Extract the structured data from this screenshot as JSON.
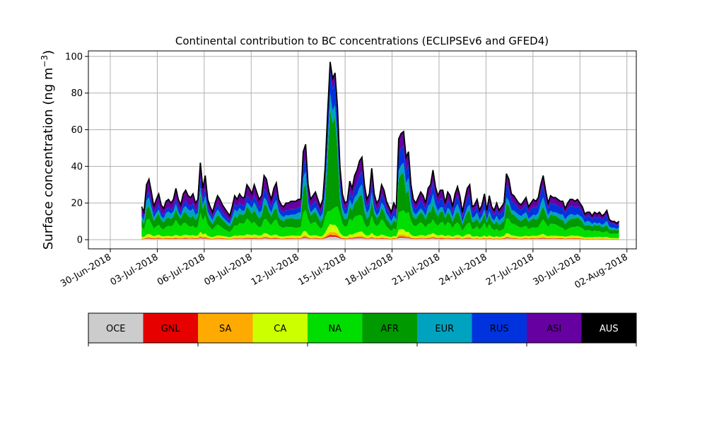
{
  "chart_data": {
    "type": "area",
    "stacked": true,
    "title": "Continental contribution to BC concentrations (ECLIPSEv6 and GFED4)",
    "ylabel": "Surface concentration (ng m",
    "ylabel_sup": "−3",
    "ylabel_close": ")",
    "xlabel": "",
    "ylim": [
      -5,
      103
    ],
    "grid": true,
    "x_start": "2018-07-02",
    "x_end": "2018-08-01",
    "x_tick_labels": [
      "30-Jun-2018",
      "03-Jul-2018",
      "06-Jul-2018",
      "09-Jul-2018",
      "12-Jul-2018",
      "15-Jul-2018",
      "18-Jul-2018",
      "21-Jul-2018",
      "24-Jul-2018",
      "27-Jul-2018",
      "30-Jul-2018",
      "02-Aug-2018"
    ],
    "y_tick_labels": [
      "0",
      "20",
      "40",
      "60",
      "80",
      "100"
    ],
    "y_ticks": [
      0,
      20,
      40,
      60,
      80,
      100
    ],
    "total": [
      18,
      15,
      30,
      33,
      26,
      18,
      22,
      25,
      19,
      17,
      21,
      22,
      20,
      22,
      28,
      22,
      19,
      25,
      27,
      24,
      23,
      25,
      20,
      22,
      42,
      28,
      35,
      22,
      18,
      15,
      20,
      24,
      22,
      19,
      17,
      15,
      13,
      18,
      24,
      22,
      25,
      23,
      23,
      30,
      28,
      25,
      30,
      26,
      22,
      24,
      35,
      33,
      26,
      22,
      28,
      31,
      22,
      19,
      18,
      20,
      20,
      21,
      21,
      21,
      22,
      22,
      48,
      52,
      30,
      22,
      24,
      26,
      22,
      18,
      22,
      40,
      70,
      97,
      88,
      91,
      72,
      40,
      25,
      20,
      21,
      32,
      28,
      35,
      38,
      43,
      45,
      30,
      22,
      25,
      39,
      25,
      20,
      22,
      30,
      27,
      21,
      18,
      15,
      20,
      17,
      55,
      58,
      59,
      45,
      48,
      30,
      22,
      20,
      23,
      26,
      24,
      20,
      28,
      30,
      38,
      29,
      24,
      27,
      27,
      20,
      26,
      24,
      18,
      25,
      29,
      24,
      15,
      22,
      28,
      30,
      18,
      19,
      22,
      16,
      19,
      25,
      16,
      24,
      18,
      16,
      20,
      16,
      18,
      20,
      36,
      33,
      25,
      24,
      22,
      20,
      19,
      21,
      23,
      18,
      20,
      22,
      21,
      23,
      30,
      35,
      27,
      20,
      24,
      23,
      23,
      22,
      21,
      21,
      17,
      20,
      22,
      22,
      21,
      22,
      20,
      18,
      14,
      15,
      15,
      13,
      15,
      14,
      15,
      13,
      14,
      16,
      11,
      10,
      10,
      9,
      10
    ],
    "series": [
      {
        "name": "OCE",
        "color": "#cccccc",
        "fractions": [
          0.02
        ]
      },
      {
        "name": "GNL",
        "color": "#e60000",
        "fractions": [
          0.01
        ]
      },
      {
        "name": "SA",
        "color": "#ffaa00",
        "fractions": [
          0.02
        ]
      },
      {
        "name": "CA",
        "color": "#ccff00",
        "fractions": [
          0.05
        ]
      },
      {
        "name": "NA",
        "color": "#00dd00",
        "fractions": [
          0.25
        ]
      },
      {
        "name": "AFR",
        "color": "#009900",
        "fractions": [
          0.22
        ]
      },
      {
        "name": "EUR",
        "color": "#00a3bf",
        "fractions": [
          0.12
        ]
      },
      {
        "name": "RUS",
        "color": "#0033dd",
        "fractions": [
          0.1
        ]
      },
      {
        "name": "ASI",
        "color": "#6600a0",
        "fractions": [
          0.21
        ]
      },
      {
        "name": "AUS",
        "color": "#000000",
        "fractions": [
          0.0
        ]
      }
    ],
    "legend_placement": "colorbar-below"
  },
  "colorbar": {
    "labels": [
      "OCE",
      "GNL",
      "SA",
      "CA",
      "NA",
      "AFR",
      "EUR",
      "RUS",
      "ASI",
      "AUS"
    ],
    "colors": [
      "#cccccc",
      "#e60000",
      "#ffaa00",
      "#ccff00",
      "#00dd00",
      "#009900",
      "#00a3bf",
      "#0033dd",
      "#6600a0",
      "#000000"
    ],
    "text_colors": [
      "#000000",
      "#000000",
      "#000000",
      "#000000",
      "#000000",
      "#000000",
      "#000000",
      "#000000",
      "#000000",
      "#ffffff"
    ]
  }
}
